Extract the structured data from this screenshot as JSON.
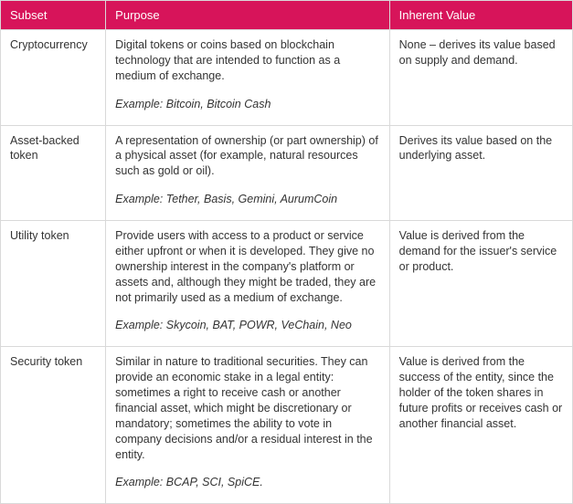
{
  "table": {
    "header_bg": "#d7145a",
    "header_color": "#ffffff",
    "border_color": "#d9d9d9",
    "cell_color": "#333333",
    "columns": [
      {
        "label": "Subset"
      },
      {
        "label": "Purpose"
      },
      {
        "label": "Inherent Value"
      }
    ],
    "example_label": "Example:",
    "rows": [
      {
        "subset": "Cryptocurrency",
        "purpose": "Digital tokens or coins based on blockchain technology that are intended to function as a medium of exchange.",
        "example": "Bitcoin, Bitcoin Cash",
        "value": "None – derives its value based on supply and demand."
      },
      {
        "subset": "Asset-backed token",
        "purpose": "A representation of ownership (or part ownership) of a physical asset (for example, natural resources such as gold or oil).",
        "example": "Tether, Basis, Gemini, AurumCoin",
        "value": "Derives its value based on the underlying asset."
      },
      {
        "subset": "Utility token",
        "purpose": "Provide users with access to a product or service either upfront or when it is developed. They give no ownership interest in the company's platform or assets and, although they might be traded, they are not primarily used as a medium of exchange.",
        "example": "Skycoin, BAT, POWR, VeChain, Neo",
        "value": "Value is derived from the demand for the issuer's service or product."
      },
      {
        "subset": "Security token",
        "purpose": "Similar in nature to traditional securities. They can provide an economic stake in a legal entity: sometimes a right to receive cash or another financial asset, which might be discretionary or mandatory; sometimes the ability to vote in company decisions and/or a residual interest in the entity.",
        "example": "BCAP, SCI, SpiCE.",
        "value": "Value is derived from the success of the entity, since the holder of the token shares in future profits or receives cash or another financial asset."
      }
    ]
  }
}
